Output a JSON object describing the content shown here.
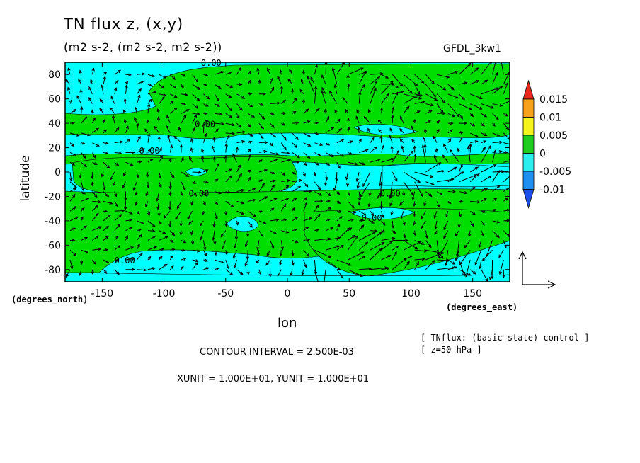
{
  "chart_data": {
    "type": "heatmap",
    "title": "TN flux z, (x,y)",
    "subtitle": "(m2 s-2, (m2 s-2, m2 s-2))",
    "tag": "GFDL_3kw1",
    "xlabel": "lon",
    "ylabel": "latitude",
    "x_unit_label": "(degrees_east)",
    "y_unit_label": "(degrees_north)",
    "xlim": [
      -180,
      180
    ],
    "ylim": [
      -90,
      90
    ],
    "x_ticks": [
      -150,
      -100,
      -50,
      0,
      50,
      100,
      150
    ],
    "x_tick_labels": [
      "-150",
      "-100",
      "-50",
      "0",
      "50",
      "100",
      "150"
    ],
    "y_ticks": [
      80,
      60,
      40,
      20,
      0,
      -20,
      -40,
      -60,
      -80
    ],
    "y_tick_labels": [
      "80",
      "60",
      "40",
      "20",
      "0",
      "-20",
      "-40",
      "-60",
      "-80"
    ],
    "colorbar": {
      "levels": [
        "0.015",
        "0.01",
        "0.005",
        "0",
        "-0.005",
        "-0.01"
      ],
      "colors": [
        "#e8291c",
        "#f7a21b",
        "#f5f51d",
        "#21cc21",
        "#2deeee",
        "#1f8ff0",
        "#1a4fe8"
      ]
    },
    "fill_colors": {
      "positive": "#00dd00",
      "negative": "#00ffff"
    },
    "contour_labels": [
      "0.00",
      "0.00",
      "0.00",
      "0.00",
      "0.00",
      "0.00",
      "0.00"
    ],
    "contour_interval": "CONTOUR INTERVAL = 2.500E-03",
    "units": "XUNIT = 1.000E+01, YUNIT = 1.000E+01",
    "info": [
      "[ TNflux: (basic state) control ]",
      "[ z=50 hPa ]"
    ]
  }
}
